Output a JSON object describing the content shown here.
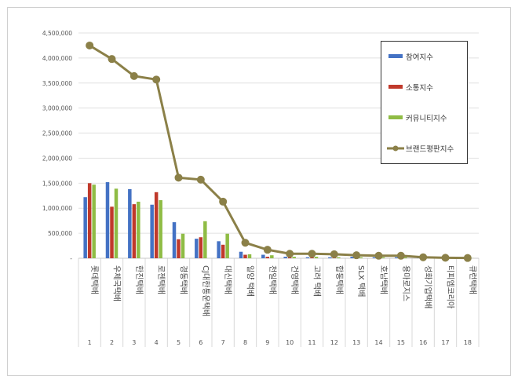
{
  "chart_data": {
    "type": "bar",
    "title": "",
    "xlabel": "",
    "ylabel": "",
    "ylim": [
      0,
      4500000
    ],
    "yticks": [
      "-",
      "500,000",
      "1,000,000",
      "1,500,000",
      "2,000,000",
      "2,500,000",
      "3,000,000",
      "3,500,000",
      "4,000,000",
      "4,500,000"
    ],
    "categories": [
      "롯데택배",
      "우체국택배",
      "한진택배",
      "로젠택배",
      "경동택배",
      "CJ대한통운택배",
      "대신택배",
      "일양 택배",
      "천일택배",
      "건영택배",
      "고려 택배",
      "합동택배",
      "SLX 택배",
      "호남택배",
      "용마로지스",
      "성화기업택배",
      "티피엠코리아",
      "큐런택배"
    ],
    "ranks": [
      "1",
      "2",
      "3",
      "4",
      "5",
      "6",
      "7",
      "8",
      "9",
      "10",
      "11",
      "12",
      "13",
      "14",
      "15",
      "16",
      "17",
      "18"
    ],
    "legend_position": "top-right",
    "series": [
      {
        "name": "참여지수",
        "type": "bar",
        "color": "#4472c4",
        "values": [
          1220000,
          1520000,
          1380000,
          1070000,
          720000,
          390000,
          340000,
          130000,
          70000,
          30000,
          20000,
          20000,
          30000,
          20000,
          20000,
          10000,
          5000,
          3000
        ]
      },
      {
        "name": "소통지수",
        "type": "bar",
        "color": "#c0392b",
        "values": [
          1500000,
          1030000,
          1080000,
          1320000,
          380000,
          420000,
          270000,
          70000,
          30000,
          20000,
          20000,
          10000,
          10000,
          10000,
          10000,
          5000,
          3000,
          2000
        ]
      },
      {
        "name": "커뮤니티지수",
        "type": "bar",
        "color": "#8fbc45",
        "values": [
          1470000,
          1390000,
          1130000,
          1160000,
          490000,
          740000,
          490000,
          80000,
          60000,
          30000,
          30000,
          20000,
          20000,
          20000,
          20000,
          10000,
          5000,
          3000
        ]
      },
      {
        "name": "브랜드평판지수",
        "type": "line",
        "color": "#8b8048",
        "values": [
          4250000,
          3980000,
          3640000,
          3570000,
          1610000,
          1570000,
          1130000,
          310000,
          170000,
          90000,
          90000,
          80000,
          60000,
          50000,
          50000,
          20000,
          10000,
          5000
        ]
      }
    ]
  }
}
